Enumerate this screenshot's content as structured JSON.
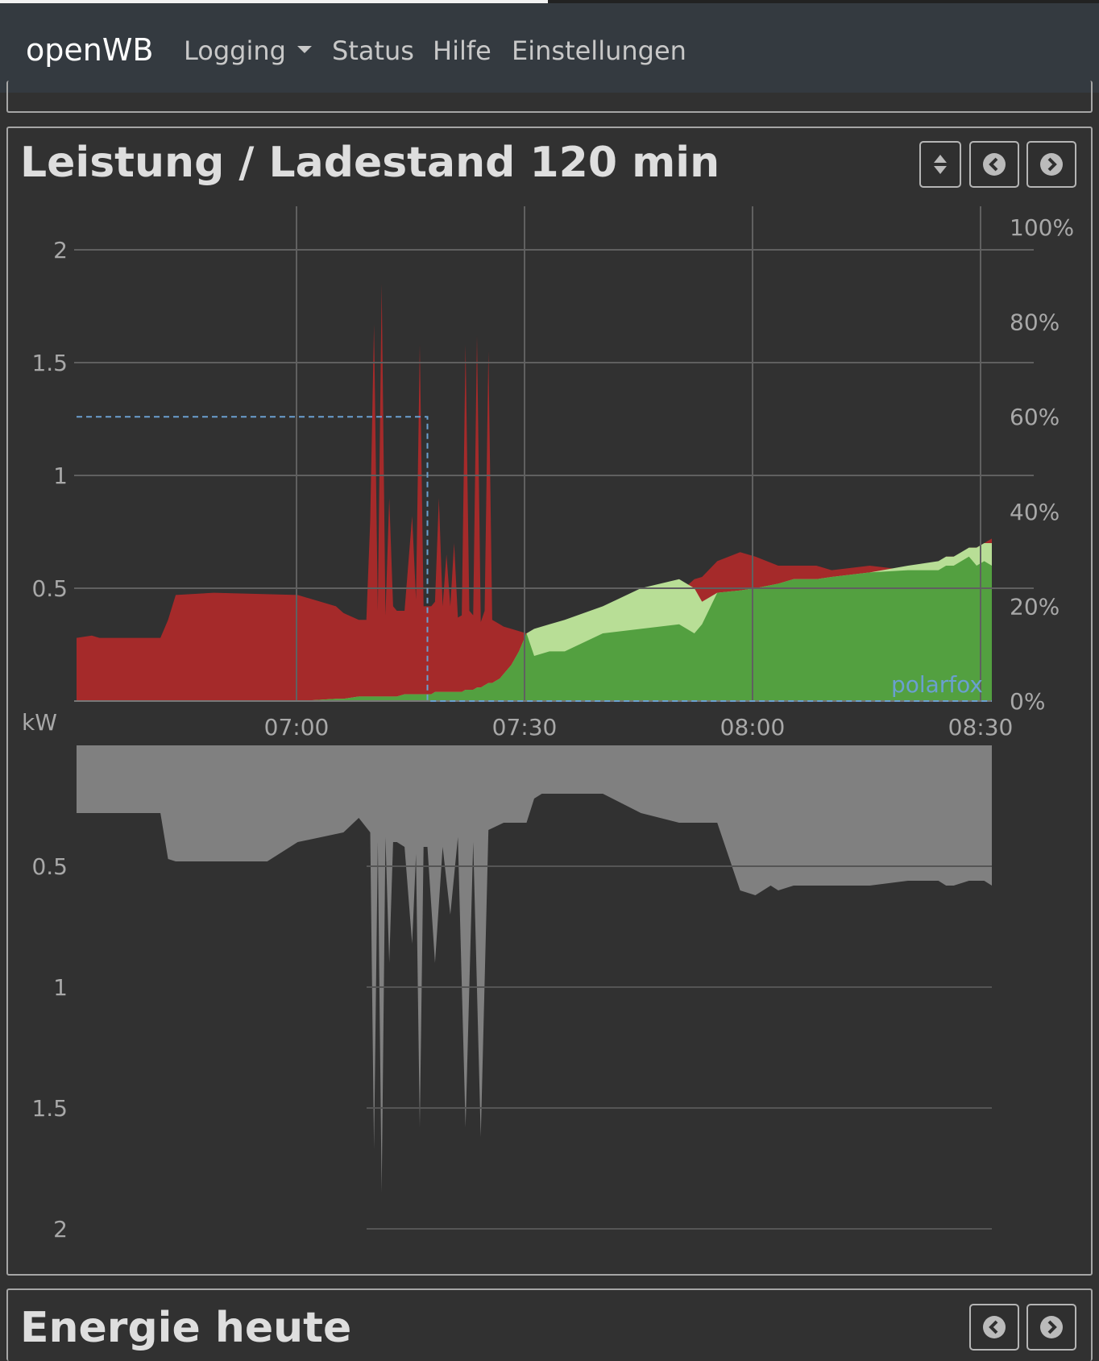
{
  "navbar": {
    "brand": "openWB",
    "items": [
      {
        "label": "Logging",
        "dropdown": true
      },
      {
        "label": "Status",
        "dropdown": false
      },
      {
        "label": "Hilfe",
        "dropdown": false
      },
      {
        "label": "Einstellungen",
        "dropdown": false
      }
    ]
  },
  "cards": {
    "power": {
      "title": "Leistung / Ladestand 120 min",
      "buttons": [
        "sort-icon",
        "chevron-left-circle-icon",
        "chevron-right-circle-icon"
      ]
    },
    "energy": {
      "title": "Energie heute",
      "buttons": [
        "chevron-left-circle-icon",
        "chevron-right-circle-icon"
      ]
    }
  },
  "colors": {
    "grid_import": "#a52a2a",
    "pv_green": "#53a040",
    "light_green": "#b8de96",
    "grey_area": "#808080",
    "soc_line": "#6a9fd0",
    "label_blue": "#6a9fd0"
  },
  "chart_data": [
    {
      "type": "area",
      "x_unit": "time",
      "x_ticks": [
        "07:00",
        "07:30",
        "08:00",
        "08:30"
      ],
      "ylabel": "kW",
      "ylim": [
        0,
        2.2
      ],
      "y_ticks": [
        "0.5",
        "1",
        "1.5",
        "2"
      ],
      "y2_ticks": [
        "0%",
        "20%",
        "40%",
        "60%",
        "80%",
        "100%"
      ],
      "y2lim": [
        0,
        100
      ],
      "grid": true,
      "annotation": "polarfox",
      "x_minutes": [
        -29,
        -27,
        -26,
        -18,
        -17,
        -16,
        -11,
        0,
        5,
        6,
        8,
        9,
        9.5,
        10,
        10.5,
        11,
        11.5,
        12,
        12.5,
        13,
        14,
        15,
        15.5,
        16,
        16.5,
        17,
        17.5,
        18,
        18.5,
        19,
        19.5,
        20,
        20.5,
        21,
        21.5,
        22,
        22.5,
        23,
        23.5,
        24,
        24.5,
        25,
        25.5,
        26,
        26.5,
        27,
        28,
        29,
        30,
        31,
        33,
        35,
        40,
        45,
        50,
        52,
        53,
        55,
        58,
        60,
        63,
        65,
        68,
        70,
        75,
        80,
        84,
        85,
        86,
        87,
        88,
        89,
        90,
        91
      ],
      "series": [
        {
          "name": "",
          "color": "brown",
          "values": [
            0.28,
            0.29,
            0.28,
            0.28,
            0.36,
            0.47,
            0.48,
            0.47,
            0.42,
            0.39,
            0.36,
            0.36,
            0.8,
            1.67,
            0.4,
            1.85,
            0.38,
            0.9,
            0.42,
            0.4,
            0.4,
            0.82,
            0.45,
            1.58,
            0.42,
            0.42,
            0.42,
            0.44,
            0.9,
            0.42,
            0.65,
            0.42,
            0.7,
            0.37,
            0.38,
            1.58,
            0.4,
            0.38,
            1.62,
            0.35,
            0.4,
            1.55,
            0.36,
            0.35,
            0.34,
            0.33,
            0.32,
            0.31,
            0.3,
            0.3,
            0.3,
            0.3,
            0.32,
            0.38,
            0.48,
            0.54,
            0.55,
            0.62,
            0.66,
            0.64,
            0.6,
            0.6,
            0.6,
            0.58,
            0.6,
            0.58,
            0.6,
            0.64,
            0.64,
            0.64,
            0.68,
            0.68,
            0.7,
            0.72
          ]
        },
        {
          "name": "",
          "color": "green",
          "values": [
            0,
            0,
            0,
            0,
            0,
            0,
            0,
            0,
            0.01,
            0.01,
            0.02,
            0.02,
            0.02,
            0.02,
            0.02,
            0.02,
            0.02,
            0.02,
            0.02,
            0.02,
            0.03,
            0.03,
            0.03,
            0.03,
            0.03,
            0.03,
            0.03,
            0.04,
            0.04,
            0.04,
            0.04,
            0.04,
            0.04,
            0.04,
            0.04,
            0.05,
            0.05,
            0.05,
            0.06,
            0.06,
            0.07,
            0.08,
            0.08,
            0.09,
            0.1,
            0.12,
            0.16,
            0.22,
            0.3,
            0.2,
            0.22,
            0.22,
            0.3,
            0.32,
            0.34,
            0.3,
            0.34,
            0.48,
            0.49,
            0.5,
            0.52,
            0.54,
            0.54,
            0.55,
            0.57,
            0.58,
            0.58,
            0.6,
            0.6,
            0.62,
            0.64,
            0.6,
            0.62,
            0.6
          ]
        },
        {
          "name": "",
          "color": "light-green",
          "values": [
            0,
            0,
            0,
            0,
            0,
            0,
            0,
            0,
            0.01,
            0.01,
            0.02,
            0.02,
            0.02,
            0.02,
            0.02,
            0.02,
            0.02,
            0.02,
            0.02,
            0.02,
            0.03,
            0.03,
            0.03,
            0.03,
            0.03,
            0.03,
            0.03,
            0.04,
            0.04,
            0.04,
            0.04,
            0.04,
            0.04,
            0.04,
            0.04,
            0.05,
            0.05,
            0.05,
            0.06,
            0.06,
            0.07,
            0.08,
            0.08,
            0.09,
            0.1,
            0.12,
            0.16,
            0.22,
            0.3,
            0.32,
            0.34,
            0.36,
            0.42,
            0.5,
            0.54,
            0.5,
            0.44,
            0.48,
            0.49,
            0.5,
            0.52,
            0.54,
            0.54,
            0.55,
            0.57,
            0.6,
            0.62,
            0.64,
            0.64,
            0.66,
            0.68,
            0.68,
            0.7,
            0.7
          ]
        },
        {
          "name": "polarfox",
          "color": "dashed-blue",
          "axis": "right",
          "unit": "%",
          "values": [
            60,
            60,
            60,
            60,
            60,
            60,
            60,
            60,
            60,
            60,
            60,
            60,
            60,
            60,
            60,
            60,
            60,
            60,
            60,
            60,
            60,
            60,
            60,
            60,
            60,
            0,
            0,
            0,
            0,
            0,
            0,
            0,
            0,
            0,
            0,
            0,
            0,
            0,
            0,
            0,
            0,
            0,
            0,
            0,
            0,
            0,
            0,
            0,
            0,
            0,
            0,
            0,
            0,
            0,
            0,
            0,
            0,
            0,
            0,
            0,
            0,
            0,
            0,
            0,
            0,
            0,
            0,
            0,
            0,
            0,
            0,
            0,
            0,
            0
          ]
        }
      ]
    },
    {
      "type": "area",
      "x_unit": "time",
      "ylim": [
        0,
        2.2
      ],
      "y_ticks": [
        "0.5",
        "1",
        "1.5",
        "2"
      ],
      "inverted": true,
      "grid": true,
      "x_minutes": [
        -29,
        -27,
        -26,
        -18,
        -17,
        -16,
        -11,
        -4,
        0,
        6,
        8,
        9.5,
        10,
        10.5,
        11,
        11.5,
        12,
        12.5,
        13,
        14,
        15,
        15.5,
        16,
        16.5,
        17,
        18,
        19,
        20,
        21,
        22,
        23,
        24,
        25,
        27,
        30,
        31,
        32,
        33,
        40,
        45,
        50,
        55,
        58,
        60,
        62,
        63,
        65,
        75,
        80,
        84,
        85,
        86,
        88,
        90,
        91
      ],
      "series": [
        {
          "name": "",
          "color": "grey",
          "values": [
            0.28,
            0.28,
            0.28,
            0.28,
            0.47,
            0.48,
            0.48,
            0.48,
            0.4,
            0.36,
            0.3,
            0.36,
            1.67,
            0.4,
            1.85,
            0.38,
            0.9,
            0.4,
            0.4,
            0.42,
            0.82,
            0.45,
            1.58,
            0.42,
            0.42,
            0.9,
            0.42,
            0.7,
            0.38,
            1.58,
            0.4,
            1.62,
            0.35,
            0.32,
            0.32,
            0.22,
            0.2,
            0.2,
            0.2,
            0.28,
            0.32,
            0.32,
            0.6,
            0.62,
            0.58,
            0.6,
            0.58,
            0.58,
            0.56,
            0.56,
            0.58,
            0.58,
            0.56,
            0.56,
            0.58
          ]
        }
      ]
    }
  ]
}
